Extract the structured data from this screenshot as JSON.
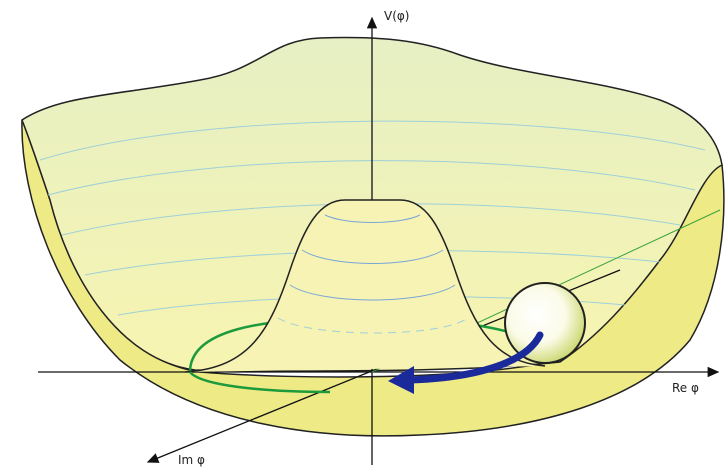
{
  "axes": {
    "vertical": "V(φ)",
    "real": "Re φ",
    "imaginary": "Im φ"
  }
}
